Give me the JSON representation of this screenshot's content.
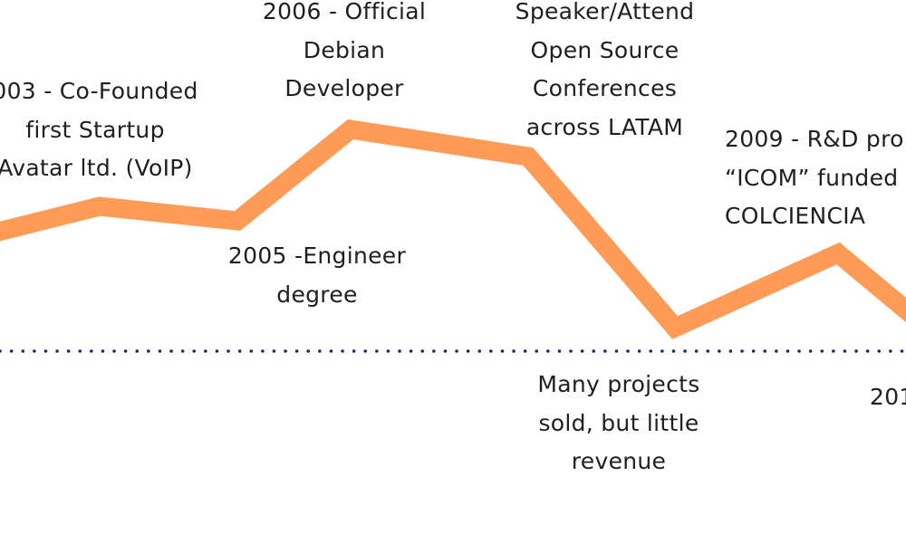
{
  "colors": {
    "trend_line": "#ff9b56",
    "baseline": "#1b2a6b",
    "text": "#1f1f1f"
  },
  "events": {
    "founded": [
      "003  - Co-Founded",
      "first Startup",
      "Avatar ltd. (VoIP)"
    ],
    "debian": [
      "2006 - Official",
      "Debian",
      "Developer"
    ],
    "conferences": [
      "Speaker/Attend",
      "Open Source",
      "Conferences",
      "across LATAM"
    ],
    "engineer": [
      "2005 -Engineer",
      "degree"
    ],
    "rd": [
      "2009 - R&D pro",
      "“ICOM” funded",
      "COLCIENCIA"
    ],
    "projects": [
      "Many projects",
      "sold, but little",
      "revenue"
    ],
    "next": [
      "201"
    ]
  }
}
